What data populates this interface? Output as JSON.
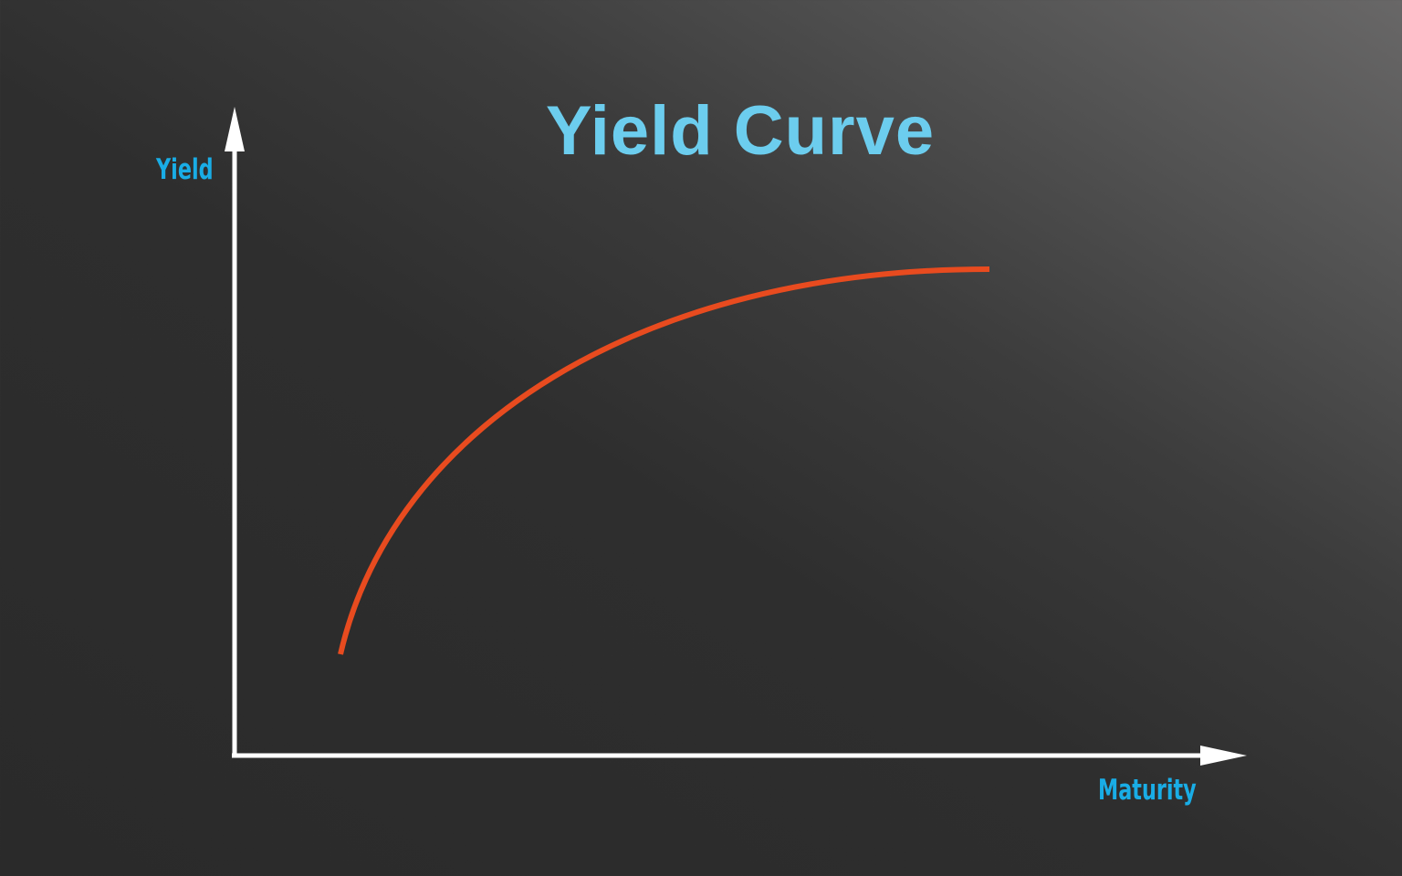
{
  "chart_data": {
    "type": "line",
    "title": "Yield Curve",
    "xlabel": "Maturity",
    "ylabel": "Yield",
    "grid": false,
    "ticks": false,
    "curve_shape": "upward-sloping, concave (normal yield curve)",
    "colors": {
      "title": "#6ccdee",
      "axis_labels": "#19ade6",
      "axes": "#ffffff",
      "curve": "#e84b1f"
    }
  }
}
